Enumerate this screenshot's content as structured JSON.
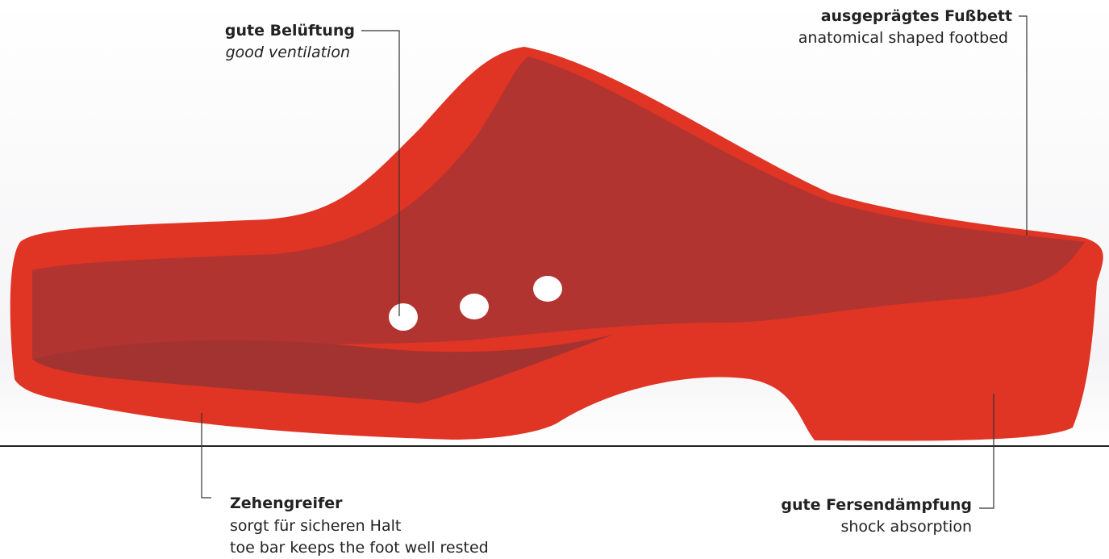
{
  "callouts": [
    {
      "title": "gute Belüftung",
      "lines": [
        "good ventilation"
      ]
    },
    {
      "title": "ausgeprägtes Fußbett",
      "lines": [
        "anatomical shaped footbed"
      ]
    },
    {
      "title": "Zehengreifer",
      "lines": [
        "sorgt für sicheren Halt",
        "toe bar keeps the foot well rested"
      ]
    },
    {
      "title": "gute Fersendämpfung",
      "lines": [
        "shock absorption"
      ]
    }
  ]
}
